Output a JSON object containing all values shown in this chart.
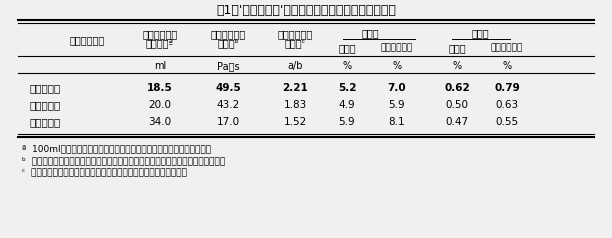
{
  "title": "表1　'にたきこま'の加熱調理適性（トマトソース）",
  "bg_color": "#f0f0f0",
  "footnotes": [
    "ª  100mlのトマトソースから５分間にガーゼを通過して落下した液量。",
    "ᵇ  値が大きいほどトマトソースの粘度が高い。２回収穫・調査した平均値を示す。",
    "ᶜ  値が大きいほど赤味が強い。２回収穫・調査した平均値を示す。"
  ],
  "rows": [
    {
      "name": "にたきこま",
      "bold": true,
      "vals": [
        "18.5",
        "49.5",
        "2.21",
        "5.2",
        "7.0",
        "0.62",
        "0.79"
      ]
    },
    {
      "name": "なつのこま",
      "bold": false,
      "vals": [
        "20.0",
        "43.2",
        "1.83",
        "4.9",
        "5.9",
        "0.50",
        "0.63"
      ]
    },
    {
      "name": "桃　太　郎",
      "bold": false,
      "vals": [
        "34.0",
        "17.0",
        "1.52",
        "5.9",
        "8.1",
        "0.47",
        "0.55"
      ]
    }
  ]
}
